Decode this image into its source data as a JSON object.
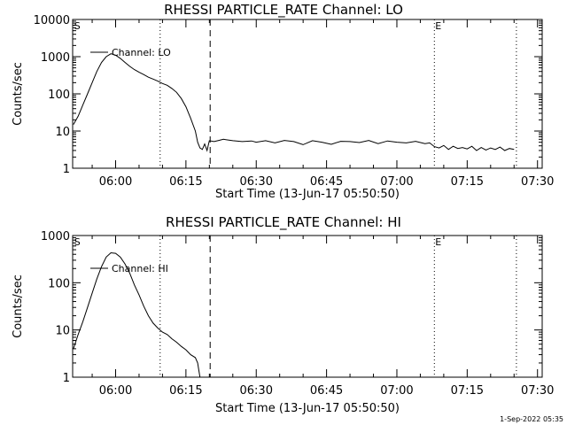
{
  "stamp": "1-Sep-2022 05:35",
  "chart_data": [
    {
      "type": "line",
      "title": "RHESSI PARTICLE_RATE Channel: LO",
      "xlabel": "Start Time (13-Jun-17 05:50:50)",
      "ylabel": "Counts/sec",
      "yscale": "log",
      "xlim": [
        "05:50:50",
        "07:31:00"
      ],
      "ylim": [
        1,
        10000
      ],
      "xticks": [
        "06:00",
        "06:15",
        "06:30",
        "06:45",
        "07:00",
        "07:15",
        "07:30"
      ],
      "yticks": [
        "1",
        "10",
        "100",
        "1000",
        "10000"
      ],
      "legend": {
        "label": "Channel: LO",
        "position": "top-left"
      },
      "markers": [
        {
          "label": "S",
          "time": "05:51:10",
          "style": "none"
        },
        {
          "label": "",
          "time": "06:09:30",
          "style": "dotted"
        },
        {
          "label": "",
          "time": "06:20:10",
          "style": "dashed"
        },
        {
          "label": "E",
          "time": "07:08:00",
          "style": "dotted"
        },
        {
          "label": "",
          "time": "07:25:30",
          "style": "dotted"
        }
      ],
      "series": [
        {
          "name": "Channel: LO",
          "x": [
            "05:51:00",
            "05:52:00",
            "05:53:00",
            "05:54:00",
            "05:55:00",
            "05:56:00",
            "05:57:00",
            "05:58:00",
            "05:59:00",
            "06:00:00",
            "06:01:00",
            "06:02:00",
            "06:03:00",
            "06:04:00",
            "06:05:00",
            "06:06:00",
            "06:07:00",
            "06:08:00",
            "06:09:00",
            "06:10:00",
            "06:11:00",
            "06:12:00",
            "06:13:00",
            "06:14:00",
            "06:15:00",
            "06:16:00",
            "06:17:00",
            "06:17:30",
            "06:18:00",
            "06:18:30",
            "06:19:00",
            "06:19:30",
            "06:20:00",
            "06:21:00",
            "06:22:00",
            "06:23:00",
            "06:25:00",
            "06:27:00",
            "06:29:00",
            "06:30:00",
            "06:32:00",
            "06:34:00",
            "06:36:00",
            "06:38:00",
            "06:40:00",
            "06:42:00",
            "06:44:00",
            "06:46:00",
            "06:48:00",
            "06:50:00",
            "06:52:00",
            "06:54:00",
            "06:56:00",
            "06:58:00",
            "07:00:00",
            "07:02:00",
            "07:04:00",
            "07:06:00",
            "07:07:00",
            "07:08:00",
            "07:09:00",
            "07:10:00",
            "07:11:00",
            "07:12:00",
            "07:13:00",
            "07:14:00",
            "07:15:00",
            "07:16:00",
            "07:17:00",
            "07:18:00",
            "07:19:00",
            "07:20:00",
            "07:21:00",
            "07:22:00",
            "07:23:00",
            "07:24:00",
            "07:25:00"
          ],
          "y": [
            15,
            25,
            50,
            100,
            200,
            400,
            700,
            1000,
            1200,
            1100,
            900,
            700,
            550,
            450,
            380,
            330,
            280,
            250,
            220,
            190,
            170,
            140,
            110,
            75,
            45,
            22,
            10,
            5,
            3.5,
            3.2,
            4.5,
            3,
            5.5,
            5.2,
            5.6,
            6,
            5.5,
            5.2,
            5.4,
            5,
            5.5,
            4.8,
            5.6,
            5.2,
            4.3,
            5.5,
            5,
            4.4,
            5.3,
            5.2,
            4.9,
            5.6,
            4.6,
            5.4,
            5.0,
            4.8,
            5.3,
            4.6,
            4.8,
            3.8,
            3.5,
            4.1,
            3.2,
            3.9,
            3.4,
            3.6,
            3.3,
            3.9,
            3.0,
            3.6,
            3.1,
            3.5,
            3.2,
            3.7,
            3.0,
            3.4,
            3.2
          ]
        }
      ]
    },
    {
      "type": "line",
      "title": "RHESSI PARTICLE_RATE Channel: HI",
      "xlabel": "Start Time (13-Jun-17 05:50:50)",
      "ylabel": "Counts/sec",
      "yscale": "log",
      "xlim": [
        "05:50:50",
        "07:31:00"
      ],
      "ylim": [
        1,
        1000
      ],
      "xticks": [
        "06:00",
        "06:15",
        "06:30",
        "06:45",
        "07:00",
        "07:15",
        "07:30"
      ],
      "yticks": [
        "1",
        "10",
        "100",
        "1000"
      ],
      "legend": {
        "label": "Channel: HI",
        "position": "top-left"
      },
      "markers": [
        {
          "label": "S",
          "time": "05:51:10",
          "style": "none"
        },
        {
          "label": "",
          "time": "06:09:30",
          "style": "dotted"
        },
        {
          "label": "",
          "time": "06:20:10",
          "style": "dashed"
        },
        {
          "label": "E",
          "time": "07:08:00",
          "style": "dotted"
        },
        {
          "label": "",
          "time": "07:25:30",
          "style": "dotted"
        }
      ],
      "series": [
        {
          "name": "Channel: HI",
          "x": [
            "05:51:00",
            "05:52:00",
            "05:53:00",
            "05:54:00",
            "05:55:00",
            "05:56:00",
            "05:57:00",
            "05:58:00",
            "05:59:00",
            "06:00:00",
            "06:01:00",
            "06:02:00",
            "06:03:00",
            "06:04:00",
            "06:05:00",
            "06:06:00",
            "06:07:00",
            "06:08:00",
            "06:09:00",
            "06:10:00",
            "06:11:00",
            "06:12:00",
            "06:13:00",
            "06:14:00",
            "06:15:00",
            "06:16:00",
            "06:17:00",
            "06:17:30",
            "06:18:00"
          ],
          "y": [
            4,
            8,
            15,
            30,
            60,
            120,
            220,
            350,
            430,
            420,
            350,
            250,
            160,
            90,
            55,
            32,
            20,
            14,
            11,
            9,
            8,
            6.5,
            5.5,
            4.5,
            3.8,
            3,
            2.6,
            2,
            1
          ]
        }
      ]
    }
  ]
}
